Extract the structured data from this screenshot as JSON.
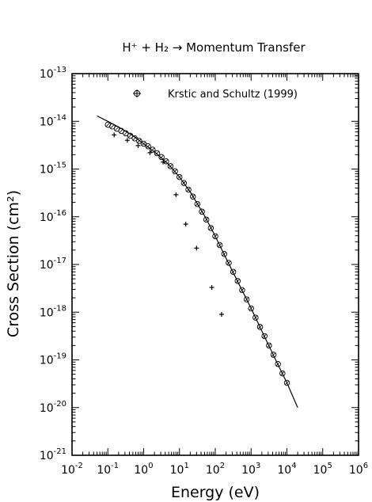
{
  "chart_data": {
    "type": "scatter",
    "title": "H⁺ + H₂ → Momentum Transfer",
    "xlabel": "Energy (eV)",
    "ylabel": "Cross Section (cm²)",
    "x_scale": "log",
    "y_scale": "log",
    "xlim": [
      0.01,
      1000000
    ],
    "ylim": [
      1e-21,
      1e-13
    ],
    "x_ticks": [
      {
        "base": "10",
        "exp": "-2",
        "value": 0.01
      },
      {
        "base": "10",
        "exp": "-1",
        "value": 0.1
      },
      {
        "base": "10",
        "exp": "0",
        "value": 1
      },
      {
        "base": "10",
        "exp": "1",
        "value": 10
      },
      {
        "base": "10",
        "exp": "2",
        "value": 100
      },
      {
        "base": "10",
        "exp": "3",
        "value": 1000
      },
      {
        "base": "10",
        "exp": "4",
        "value": 10000
      },
      {
        "base": "10",
        "exp": "5",
        "value": 100000
      },
      {
        "base": "10",
        "exp": "6",
        "value": 1000000
      }
    ],
    "y_ticks": [
      {
        "base": "10",
        "exp": "-13",
        "value": 1e-13
      },
      {
        "base": "10",
        "exp": "-14",
        "value": 1e-14
      },
      {
        "base": "10",
        "exp": "-15",
        "value": 1e-15
      },
      {
        "base": "10",
        "exp": "-16",
        "value": 1e-16
      },
      {
        "base": "10",
        "exp": "-17",
        "value": 1e-17
      },
      {
        "base": "10",
        "exp": "-18",
        "value": 1e-18
      },
      {
        "base": "10",
        "exp": "-19",
        "value": 1e-19
      },
      {
        "base": "10",
        "exp": "-20",
        "value": 1e-20
      },
      {
        "base": "10",
        "exp": "-21",
        "value": 1e-21
      }
    ],
    "legend_position": "top-right",
    "grid": false,
    "series": [
      {
        "name": "Krstic and Schultz (1999)",
        "marker": "circle-plus",
        "points": [
          [
            0.1,
            8.5e-15
          ],
          [
            0.133,
            7.8e-15
          ],
          [
            0.178,
            7e-15
          ],
          [
            0.237,
            6.3e-15
          ],
          [
            0.316,
            5.6e-15
          ],
          [
            0.422,
            5e-15
          ],
          [
            0.562,
            4.4e-15
          ],
          [
            0.75,
            3.9e-15
          ],
          [
            1.0,
            3.4e-15
          ],
          [
            1.33,
            3e-15
          ],
          [
            1.78,
            2.55e-15
          ],
          [
            2.37,
            2.15e-15
          ],
          [
            3.16,
            1.78e-15
          ],
          [
            4.22,
            1.45e-15
          ],
          [
            5.62,
            1.15e-15
          ],
          [
            7.5,
            9e-16
          ],
          [
            10,
            6.8e-16
          ],
          [
            13.3,
            5.1e-16
          ],
          [
            17.8,
            3.7e-16
          ],
          [
            23.7,
            2.65e-16
          ],
          [
            31.6,
            1.85e-16
          ],
          [
            42.2,
            1.28e-16
          ],
          [
            56.2,
            8.7e-17
          ],
          [
            75,
            5.8e-17
          ],
          [
            100,
            3.9e-17
          ],
          [
            133,
            2.55e-17
          ],
          [
            178,
            1.66e-17
          ],
          [
            237,
            1.08e-17
          ],
          [
            316,
            7e-18
          ],
          [
            422,
            4.5e-18
          ],
          [
            562,
            2.9e-18
          ],
          [
            750,
            1.85e-18
          ],
          [
            1000,
            1.2e-18
          ],
          [
            1330,
            7.7e-19
          ],
          [
            1780,
            4.9e-19
          ],
          [
            2370,
            3.15e-19
          ],
          [
            3160,
            2e-19
          ],
          [
            4220,
            1.28e-19
          ],
          [
            5620,
            8.2e-20
          ],
          [
            7500,
            5.2e-20
          ],
          [
            10000,
            3.3e-20
          ]
        ]
      },
      {
        "name": "",
        "marker": "cross",
        "points": [
          [
            0.15,
            5.2e-15
          ],
          [
            0.35,
            4e-15
          ],
          [
            0.7,
            3.1e-15
          ],
          [
            1.5,
            2.2e-15
          ],
          [
            3.5,
            1.4e-15
          ],
          [
            8,
            2.9e-16
          ],
          [
            15,
            7e-17
          ],
          [
            30,
            2.2e-17
          ],
          [
            80,
            3.3e-18
          ],
          [
            150,
            9e-19
          ]
        ]
      },
      {
        "name": "",
        "marker": "line",
        "points": [
          [
            0.05,
            1.3e-14
          ],
          [
            0.1,
            1e-14
          ],
          [
            0.2,
            7.6e-15
          ],
          [
            0.5,
            5e-15
          ],
          [
            1,
            3.4e-15
          ],
          [
            2,
            2.3e-15
          ],
          [
            5,
            1.25e-15
          ],
          [
            10,
            6.8e-16
          ],
          [
            20,
            3.3e-16
          ],
          [
            50,
            1.05e-16
          ],
          [
            100,
            3.9e-17
          ],
          [
            200,
            1.35e-17
          ],
          [
            500,
            3.4e-18
          ],
          [
            1000,
            1.2e-18
          ],
          [
            2000,
            4e-19
          ],
          [
            5000,
            9.5e-20
          ],
          [
            10000,
            3.3e-20
          ],
          [
            20000,
            1e-20
          ]
        ]
      }
    ]
  }
}
